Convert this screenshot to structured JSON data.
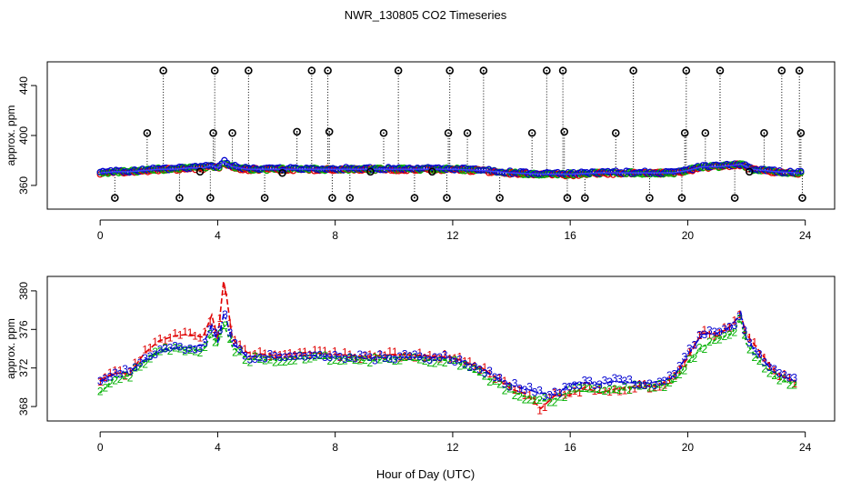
{
  "title": "NWR_130805  CO2 Timeseries",
  "x_axis_label": "Hour of Day (UTC)",
  "colors": {
    "series1": "#e00000",
    "series2": "#00b000",
    "series3": "#0000d0",
    "outlier": "#000000",
    "mean_line": "#4040ff"
  },
  "chart_data": [
    {
      "type": "scatter",
      "panel": "top",
      "title": "NWR_130805  CO2 Timeseries",
      "xlabel": "",
      "ylabel": "approx. ppm",
      "xlim": [
        -1.8,
        25
      ],
      "ylim": [
        341,
        459
      ],
      "x_ticks": [
        "0",
        "4",
        "8",
        "12",
        "16",
        "20",
        "24"
      ],
      "y_ticks": [
        "360",
        "400",
        "440"
      ],
      "baseline": {
        "x": [
          0,
          0.5,
          1,
          1.5,
          2,
          2.5,
          3,
          3.5,
          3.8,
          4,
          4.2,
          4.5,
          5,
          6,
          7,
          8,
          9,
          10,
          11,
          12,
          13,
          14,
          15,
          16,
          17,
          18,
          19,
          19.5,
          20,
          20.5,
          21,
          21.5,
          21.8,
          22.2,
          23,
          23.8
        ],
        "y": [
          370,
          371,
          371,
          372,
          373,
          373,
          374,
          374,
          376,
          374,
          379,
          375,
          373,
          373,
          373,
          373,
          373,
          373,
          373,
          373,
          372,
          370,
          369,
          369,
          370,
          370,
          370,
          370,
          372,
          375,
          375,
          376,
          377,
          373,
          371,
          370
        ]
      },
      "outliers": {
        "x": [
          0.5,
          1.6,
          2.15,
          2.7,
          3.4,
          3.75,
          3.85,
          3.9,
          4.5,
          5.05,
          5.6,
          6.2,
          6.7,
          7.2,
          7.75,
          7.8,
          7.9,
          8.5,
          9.2,
          9.65,
          10.15,
          10.7,
          11.3,
          11.8,
          11.85,
          11.9,
          12.5,
          13.05,
          13.6,
          14.7,
          15.2,
          15.75,
          15.8,
          15.9,
          16.5,
          17.55,
          18.15,
          18.7,
          19.8,
          19.9,
          19.95,
          20.6,
          21.1,
          21.6,
          22.1,
          22.6,
          23.2,
          23.8,
          23.85,
          23.9
        ],
        "y": [
          350,
          402,
          452,
          350,
          371,
          350,
          402,
          452,
          402,
          452,
          350,
          370,
          403,
          452,
          452,
          403,
          350,
          350,
          371,
          402,
          452,
          350,
          371,
          350,
          402,
          452,
          402,
          452,
          350,
          402,
          452,
          452,
          403,
          350,
          350,
          402,
          452,
          350,
          350,
          402,
          452,
          402,
          452,
          350,
          371,
          402,
          452,
          452,
          402,
          350
        ]
      }
    },
    {
      "type": "line",
      "panel": "bottom",
      "xlabel": "Hour of Day (UTC)",
      "ylabel": "approx. ppm",
      "xlim": [
        -1.8,
        25
      ],
      "ylim": [
        366.5,
        381.5
      ],
      "x_ticks": [
        "0",
        "4",
        "8",
        "12",
        "16",
        "20",
        "24"
      ],
      "y_ticks": [
        "368",
        "372",
        "376",
        "380"
      ],
      "series": [
        {
          "name": "1",
          "x": [
            0,
            0.5,
            1,
            1.5,
            2,
            2.5,
            3,
            3.5,
            3.8,
            4.0,
            4.2,
            4.3,
            4.5,
            5,
            6,
            7,
            8,
            9,
            10,
            11,
            12,
            13,
            14,
            14.5,
            15,
            15.5,
            16,
            16.5,
            17,
            17.5,
            18,
            18.5,
            19,
            19.5,
            20,
            20.5,
            21,
            21.5,
            21.8,
            22,
            22.5,
            23,
            23.7
          ],
          "values": [
            370.8,
            371.5,
            371.4,
            373.5,
            374.8,
            375.3,
            375.5,
            375.2,
            377.5,
            375.0,
            381.0,
            379.5,
            375.0,
            373.6,
            373.3,
            373.6,
            373.4,
            373.2,
            373.4,
            373.3,
            373.1,
            372.0,
            369.8,
            369.3,
            367.8,
            369.2,
            369.2,
            370.0,
            369.4,
            369.8,
            370.0,
            370.2,
            370.1,
            371.0,
            373.0,
            375.8,
            375.3,
            376.5,
            377.5,
            375.5,
            373.5,
            371.5,
            370.5
          ]
        },
        {
          "name": "2",
          "x": [
            0,
            0.5,
            1,
            1.5,
            2,
            2.5,
            3,
            3.5,
            3.8,
            4.0,
            4.2,
            4.3,
            4.5,
            5,
            6,
            7,
            8,
            9,
            10,
            11,
            12,
            13,
            14,
            14.5,
            15,
            15.5,
            16,
            16.5,
            17,
            17.5,
            18,
            18.5,
            19,
            19.5,
            20,
            20.5,
            21,
            21.5,
            21.8,
            22,
            22.5,
            23,
            23.7
          ],
          "values": [
            369.4,
            371.0,
            371.2,
            372.6,
            373.6,
            374.0,
            373.8,
            373.9,
            375.5,
            374.4,
            376.5,
            375.8,
            374.2,
            372.9,
            372.8,
            373.0,
            373.0,
            372.8,
            372.9,
            372.8,
            372.8,
            371.2,
            369.6,
            369.0,
            368.6,
            368.8,
            369.6,
            369.6,
            369.5,
            369.6,
            369.9,
            370.0,
            370.1,
            370.5,
            372.5,
            374.2,
            375.0,
            375.6,
            377.0,
            374.5,
            372.5,
            371.0,
            370.2
          ]
        },
        {
          "name": "3",
          "x": [
            0,
            0.5,
            1,
            1.5,
            2,
            2.5,
            3,
            3.5,
            3.8,
            4.0,
            4.2,
            4.3,
            4.5,
            5,
            6,
            7,
            8,
            9,
            10,
            11,
            12,
            13,
            14,
            14.5,
            15,
            15.5,
            16,
            16.5,
            17,
            17.5,
            18,
            18.5,
            19,
            19.5,
            20,
            20.5,
            21,
            21.5,
            21.8,
            22,
            22.5,
            23,
            23.7
          ],
          "values": [
            370.6,
            371.4,
            371.6,
            372.8,
            373.8,
            374.1,
            374.1,
            374.4,
            376.5,
            374.6,
            377.5,
            377.0,
            374.6,
            373.2,
            373.1,
            373.3,
            373.2,
            373.0,
            373.1,
            373.1,
            373.0,
            371.8,
            370.2,
            369.8,
            369.4,
            369.2,
            370.3,
            370.5,
            370.3,
            370.6,
            370.5,
            370.4,
            370.6,
            371.0,
            373.4,
            375.5,
            375.6,
            376.3,
            377.8,
            375.0,
            373.0,
            371.4,
            370.6
          ]
        }
      ]
    }
  ]
}
